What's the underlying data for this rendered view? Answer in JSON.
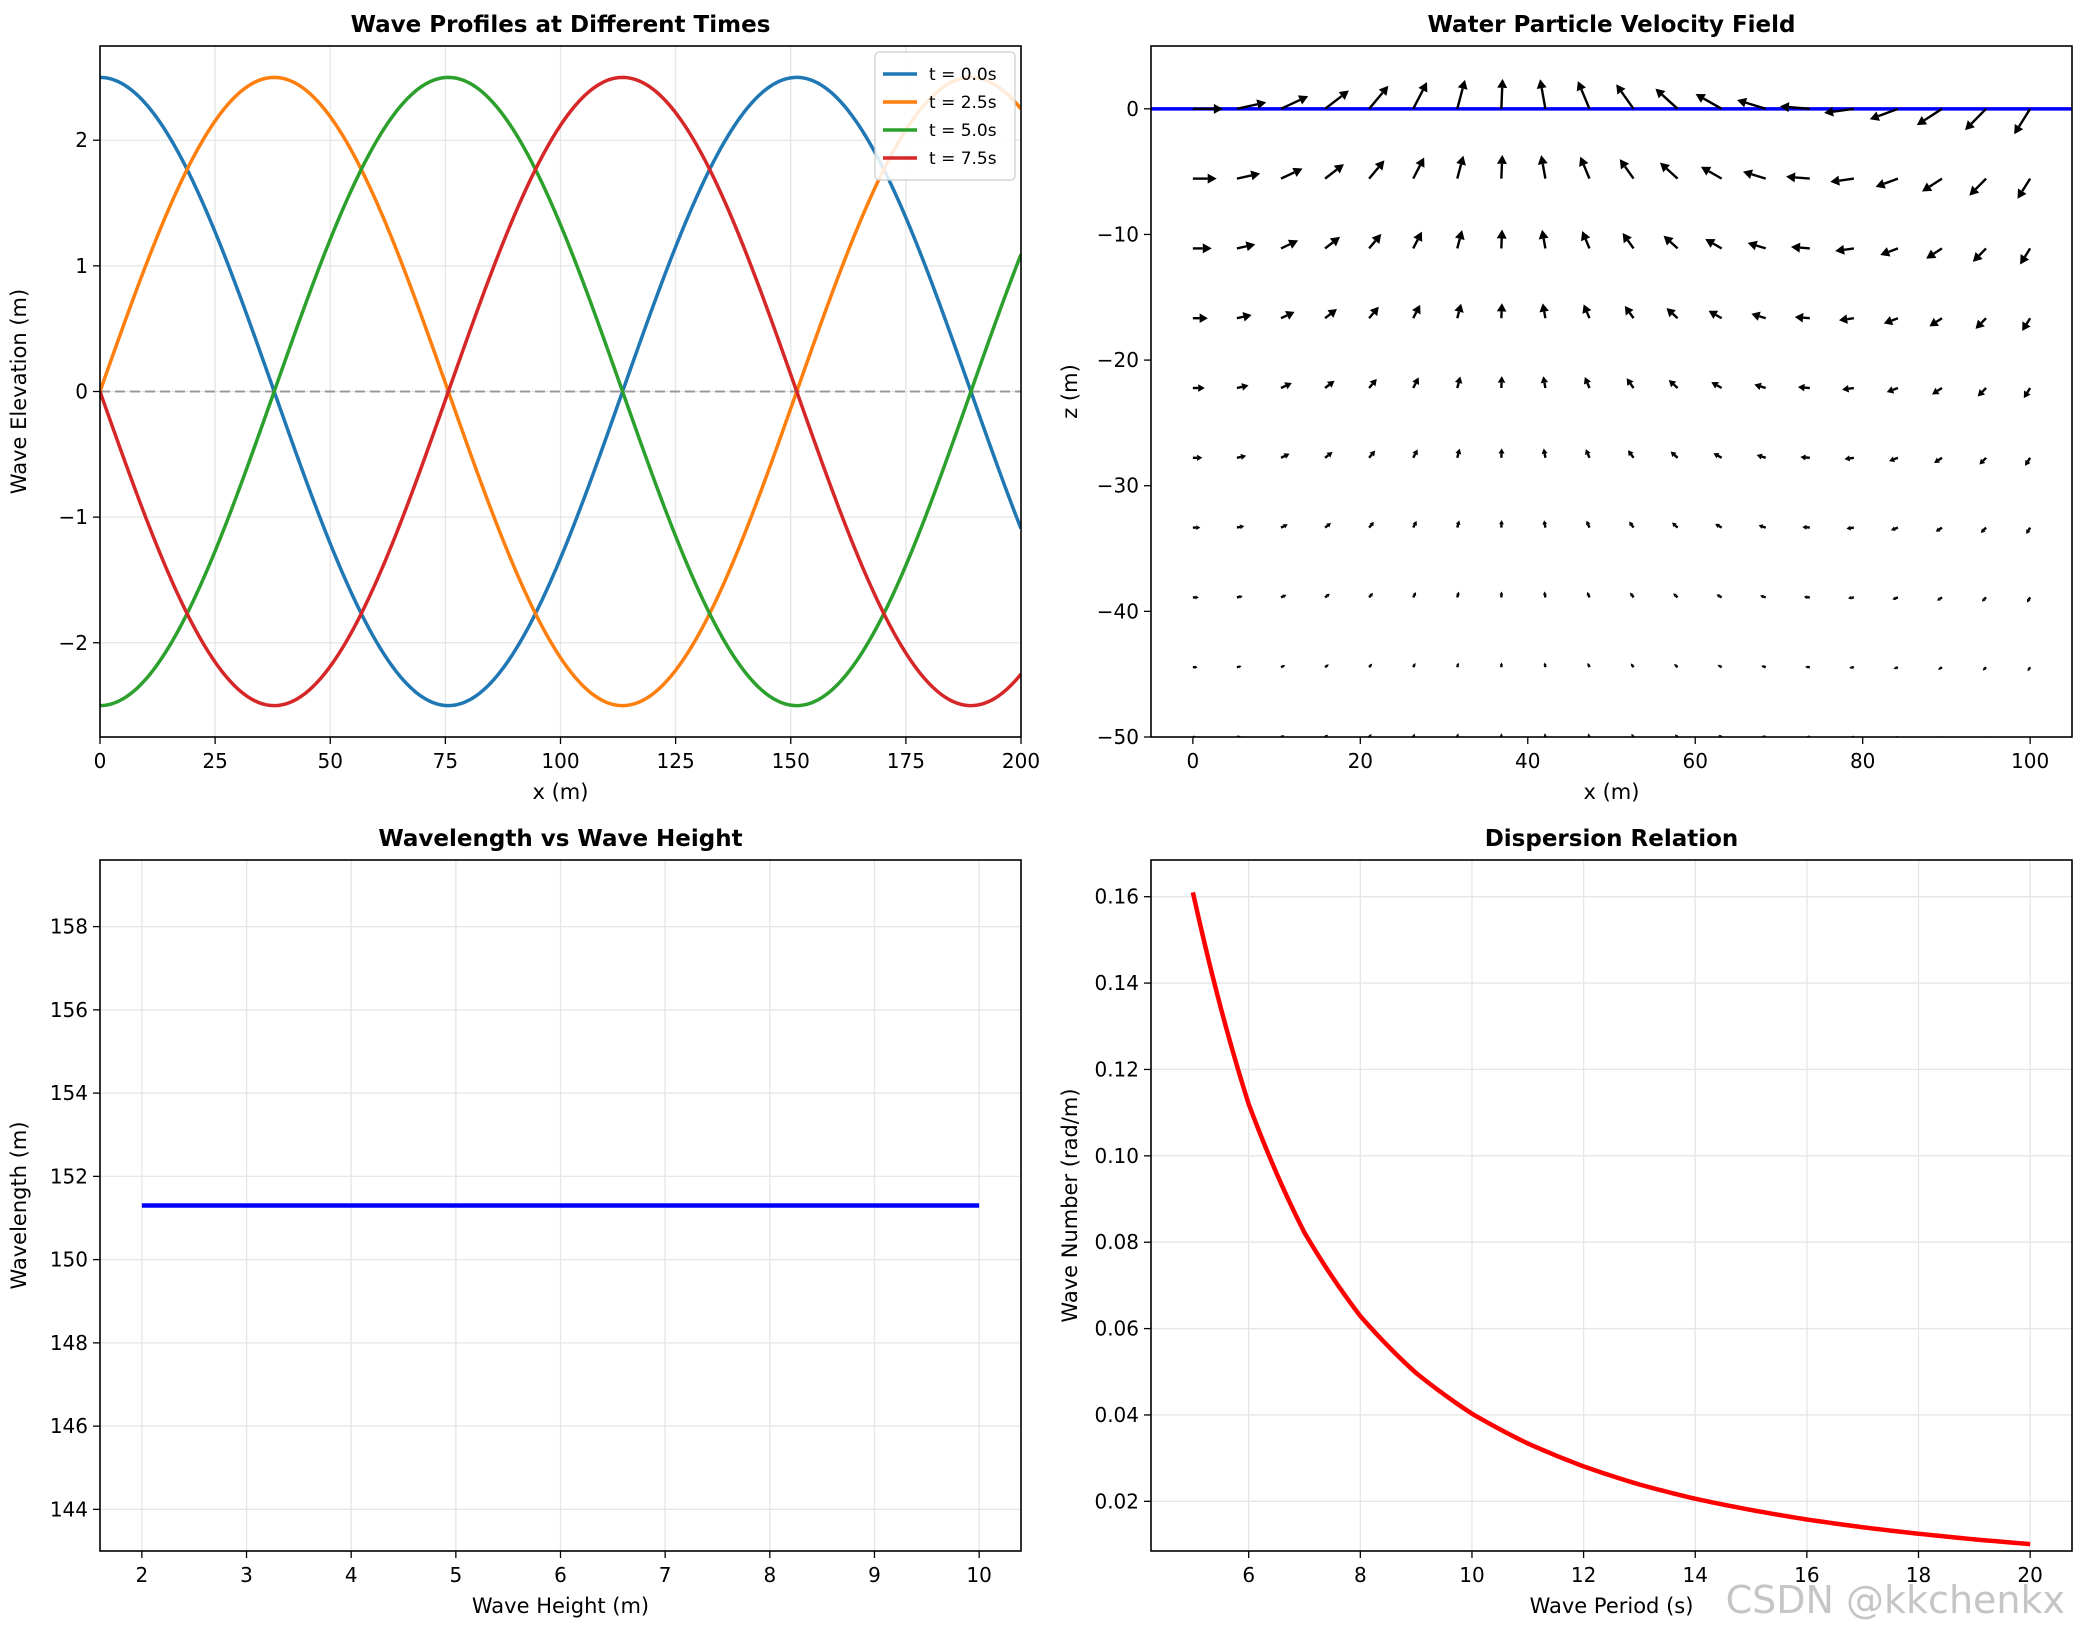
{
  "watermark": "CSDN @kkchenkx",
  "chart_data": [
    {
      "type": "line",
      "title": "Wave Profiles at Different Times",
      "xlabel": "x (m)",
      "ylabel": "Wave Elevation (m)",
      "xlim": [
        0,
        200
      ],
      "ylim": [
        -2.75,
        2.75
      ],
      "xticks": [
        0,
        25,
        50,
        75,
        100,
        125,
        150,
        175,
        200
      ],
      "yticks": [
        -2,
        -1,
        0,
        1,
        2
      ],
      "xtick_labels": [
        "0",
        "25",
        "50",
        "75",
        "100",
        "125",
        "150",
        "175",
        "200"
      ],
      "ytick_labels": [
        "−2",
        "−1",
        "0",
        "1",
        "2"
      ],
      "grid": true,
      "legend_position": "top-right",
      "zero_line": true,
      "wave": {
        "amplitude": 2.5,
        "wavelength": 151.3,
        "period": 10
      },
      "series": [
        {
          "name": "t = 0.0s",
          "t": 0.0,
          "color": "#1f77b4"
        },
        {
          "name": "t = 2.5s",
          "t": 2.5,
          "color": "#ff7f0e"
        },
        {
          "name": "t = 5.0s",
          "t": 5.0,
          "color": "#2ca02c"
        },
        {
          "name": "t = 7.5s",
          "t": 7.5,
          "color": "#d62728"
        }
      ]
    },
    {
      "type": "quiver",
      "title": "Water Particle Velocity Field",
      "xlabel": "x (m)",
      "ylabel": "z (m)",
      "xlim": [
        -5,
        105
      ],
      "ylim": [
        -50,
        5
      ],
      "xticks": [
        0,
        20,
        40,
        60,
        80,
        100
      ],
      "yticks": [
        -50,
        -40,
        -30,
        -20,
        -10,
        0
      ],
      "xtick_labels": [
        "0",
        "20",
        "40",
        "60",
        "80",
        "100"
      ],
      "ytick_labels": [
        "−50",
        "−40",
        "−30",
        "−20",
        "−10",
        "0"
      ],
      "grid": false,
      "surface_line": {
        "z": 0,
        "color": "#0000ff"
      },
      "arrow_color": "#000000",
      "grid_points": {
        "x_start": 0,
        "x_end": 100,
        "x_count": 20,
        "z_start": 0,
        "z_end": -50,
        "z_count": 10
      },
      "wave": {
        "amplitude": 2.5,
        "wavelength": 151.3,
        "period": 10
      }
    },
    {
      "type": "line",
      "title": "Wavelength vs Wave Height",
      "xlabel": "Wave Height (m)",
      "ylabel": "Wavelength (m)",
      "xlim": [
        1.6,
        10.4
      ],
      "ylim": [
        143,
        159.6
      ],
      "xticks": [
        2,
        3,
        4,
        5,
        6,
        7,
        8,
        9,
        10
      ],
      "yticks": [
        144,
        146,
        148,
        150,
        152,
        154,
        156,
        158
      ],
      "xtick_labels": [
        "2",
        "3",
        "4",
        "5",
        "6",
        "7",
        "8",
        "9",
        "10"
      ],
      "ytick_labels": [
        "144",
        "146",
        "148",
        "150",
        "152",
        "154",
        "156",
        "158"
      ],
      "grid": true,
      "series": [
        {
          "name": "wavelength",
          "color": "#0000ff",
          "x": [
            2,
            10
          ],
          "y": [
            151.3,
            151.3
          ]
        }
      ]
    },
    {
      "type": "line",
      "title": "Dispersion Relation",
      "xlabel": "Wave Period (s)",
      "ylabel": "Wave Number (rad/m)",
      "xlim": [
        4.25,
        20.75
      ],
      "ylim": [
        0.0085,
        0.1685
      ],
      "xticks": [
        6,
        8,
        10,
        12,
        14,
        16,
        18,
        20
      ],
      "yticks": [
        0.02,
        0.04,
        0.06,
        0.08,
        0.1,
        0.12,
        0.14,
        0.16
      ],
      "xtick_labels": [
        "6",
        "8",
        "10",
        "12",
        "14",
        "16",
        "18",
        "20"
      ],
      "ytick_labels": [
        "0.02",
        "0.04",
        "0.06",
        "0.08",
        "0.10",
        "0.12",
        "0.14",
        "0.16"
      ],
      "grid": true,
      "series": [
        {
          "name": "wave number",
          "color": "#ff0000",
          "x": [
            5,
            6,
            7,
            8,
            9,
            10,
            11,
            12,
            13,
            14,
            15,
            16,
            17,
            18,
            19,
            20
          ],
          "y": [
            0.161,
            0.112,
            0.0822,
            0.0629,
            0.0497,
            0.0403,
            0.0334,
            0.0281,
            0.0239,
            0.0206,
            0.018,
            0.0158,
            0.014,
            0.0125,
            0.0112,
            0.0101
          ]
        }
      ]
    }
  ]
}
